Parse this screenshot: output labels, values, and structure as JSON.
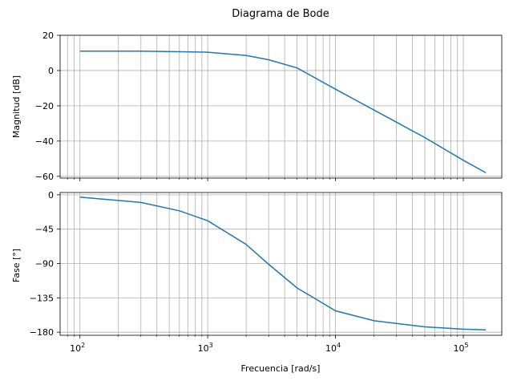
{
  "chart_data": {
    "title": "Diagrama de Bode",
    "xlabel": "Frecuencia [rad/s]",
    "xscale": "log",
    "xlim": [
      70,
      200000
    ],
    "grid": "both",
    "line_color": "#1f77b4",
    "x_ticks": [
      {
        "value": 100,
        "base": "10",
        "exp": "2"
      },
      {
        "value": 1000,
        "base": "10",
        "exp": "3"
      },
      {
        "value": 10000,
        "base": "10",
        "exp": "4"
      },
      {
        "value": 100000,
        "base": "10",
        "exp": "5"
      }
    ],
    "panels": [
      {
        "type": "line",
        "ylabel": "Magnitud [dB]",
        "ylim": [
          -61,
          20
        ],
        "yticks": [
          {
            "value": 20,
            "label": "20"
          },
          {
            "value": 0,
            "label": "0"
          },
          {
            "value": -20,
            "label": "−20"
          },
          {
            "value": -40,
            "label": "−40"
          },
          {
            "value": -60,
            "label": "−60"
          }
        ],
        "x": [
          100,
          300,
          1000,
          2000,
          3000,
          5000,
          10000,
          20000,
          50000,
          100000,
          150000
        ],
        "y": [
          11.0,
          11.0,
          10.4,
          8.6,
          6.1,
          1.5,
          -10.6,
          -22.4,
          -38.0,
          -50.9,
          -58.0
        ]
      },
      {
        "type": "line",
        "ylabel": "Fase [°]",
        "ylim": [
          -184,
          3
        ],
        "yticks": [
          {
            "value": 0,
            "label": "0"
          },
          {
            "value": -45,
            "label": "−45"
          },
          {
            "value": -90,
            "label": "−90"
          },
          {
            "value": -135,
            "label": "−135"
          },
          {
            "value": -180,
            "label": "−180"
          }
        ],
        "x": [
          100,
          300,
          600,
          1000,
          2000,
          3000,
          5000,
          10000,
          20000,
          50000,
          100000,
          150000
        ],
        "y": [
          -3,
          -10,
          -21,
          -34,
          -65,
          -91,
          -122,
          -152,
          -165,
          -173,
          -176,
          -177
        ]
      }
    ]
  }
}
